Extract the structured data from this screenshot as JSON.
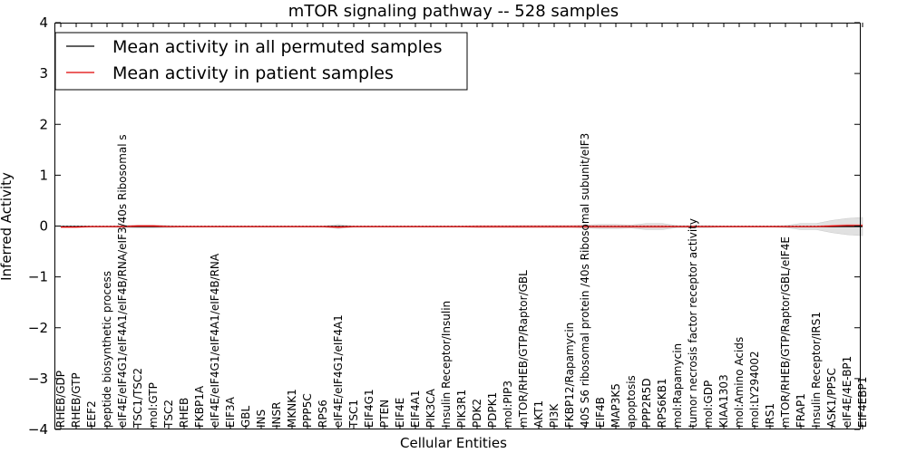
{
  "chart_data": {
    "type": "line",
    "title": "mTOR signaling pathway -- 528 samples",
    "xlabel": "Cellular Entities",
    "ylabel": "Inferred Activity",
    "ylim": [
      -4,
      4
    ],
    "yticks": [
      -4,
      -3,
      -2,
      -1,
      0,
      1,
      2,
      3,
      4
    ],
    "ytick_labels": [
      "−4",
      "−3",
      "−2",
      "−1",
      "0",
      "1",
      "2",
      "3",
      "4"
    ],
    "legend_position": "top-left",
    "categories": [
      "RHEB/GDP",
      "RHEB/GTP",
      "EEF2",
      "peptide biosynthetic process",
      "eIF4E/eIF4G1/eIF4A1/eIF4B/RNA/eIF3/40s Ribosomal s",
      "TSC1/TSC2",
      "mol:GTP",
      "TSC2",
      "RHEB",
      "FKBP1A",
      "eIF4E/eIF4G1/eIF4A1/eIF4B/RNA",
      "EIF3A",
      "GBL",
      "INS",
      "INSR",
      "MKNK1",
      "PPP5C",
      "RPS6",
      "eIF4E/eIF4G1/eIF4A1",
      "TSC1",
      "EIF4G1",
      "PTEN",
      "EIF4E",
      "EIF4A1",
      "PIK3CA",
      "Insulin Receptor/Insulin",
      "PIK3R1",
      "PDK2",
      "PDPK1",
      "mol:PIP3",
      "mTOR/RHEB/GTP/Raptor/GBL",
      "AKT1",
      "PI3K",
      "FKBP12/Rapamycin",
      "40S S6 ribosomal protein /40s Ribosomal subunit/eIF3",
      "EIF4B",
      "MAP3K5",
      "apoptosis",
      "PPP2R5D",
      "RPS6KB1",
      "mol:Rapamycin",
      "tumor necrosis factor receptor activity",
      "mol:GDP",
      "KIAA1303",
      "mol:Amino Acids",
      "mol:LY294002",
      "IRS1",
      "mTOR/RHEB/GTP/Raptor/GBL/eIF4E",
      "FRAP1",
      "Insulin Receptor/IRS1",
      "ASK1/PP5C",
      "eIF4E/4E-BP1",
      "EIF4EBP1"
    ],
    "series": [
      {
        "name": "Mean activity in all permuted samples",
        "color": "#000000",
        "values": [
          -0.01,
          -0.01,
          -0.01,
          -0.01,
          -0.01,
          -0.01,
          -0.01,
          -0.01,
          -0.01,
          -0.01,
          -0.01,
          -0.01,
          -0.01,
          -0.01,
          -0.01,
          -0.01,
          -0.01,
          -0.01,
          -0.01,
          -0.01,
          -0.01,
          -0.01,
          -0.01,
          -0.01,
          -0.01,
          -0.01,
          -0.01,
          -0.01,
          -0.01,
          -0.01,
          -0.01,
          -0.01,
          -0.01,
          -0.01,
          -0.01,
          -0.01,
          -0.01,
          -0.01,
          -0.01,
          -0.01,
          -0.01,
          -0.01,
          -0.01,
          -0.01,
          -0.01,
          -0.01,
          -0.01,
          -0.01,
          -0.01,
          -0.01,
          -0.01,
          -0.01,
          -0.01
        ],
        "band_halfwidth": [
          0.01,
          0.01,
          0.01,
          0.01,
          0.02,
          0.03,
          0.03,
          0.02,
          0.01,
          0.01,
          0.01,
          0.01,
          0.01,
          0.01,
          0.01,
          0.01,
          0.01,
          0.01,
          0.04,
          0.01,
          0.01,
          0.01,
          0.01,
          0.01,
          0.01,
          0.01,
          0.01,
          0.01,
          0.01,
          0.01,
          0.02,
          0.02,
          0.02,
          0.02,
          0.03,
          0.04,
          0.04,
          0.03,
          0.06,
          0.06,
          0.02,
          0.02,
          0.02,
          0.01,
          0.01,
          0.01,
          0.01,
          0.02,
          0.06,
          0.06,
          0.12,
          0.16,
          0.18
        ],
        "band_color": "#c8c8c8"
      },
      {
        "name": "Mean activity in patient samples",
        "color": "#e00000",
        "values": [
          -0.02,
          -0.02,
          -0.01,
          -0.01,
          -0.01,
          0.0,
          0.0,
          -0.01,
          -0.01,
          -0.01,
          -0.01,
          -0.01,
          -0.01,
          -0.01,
          -0.01,
          -0.01,
          -0.01,
          -0.01,
          -0.02,
          -0.01,
          -0.01,
          -0.01,
          -0.01,
          -0.01,
          -0.01,
          -0.01,
          -0.01,
          -0.01,
          -0.01,
          -0.01,
          -0.01,
          -0.01,
          -0.01,
          -0.01,
          -0.01,
          -0.01,
          -0.01,
          -0.01,
          -0.01,
          -0.01,
          -0.01,
          -0.01,
          -0.01,
          -0.01,
          -0.01,
          -0.01,
          -0.01,
          -0.01,
          -0.01,
          -0.01,
          0.0,
          0.01,
          0.01
        ],
        "band_halfwidth": [
          0.01,
          0.01,
          0.01,
          0.01,
          0.01,
          0.02,
          0.02,
          0.01,
          0.01,
          0.01,
          0.01,
          0.01,
          0.01,
          0.01,
          0.01,
          0.01,
          0.01,
          0.01,
          0.02,
          0.01,
          0.01,
          0.01,
          0.01,
          0.01,
          0.01,
          0.01,
          0.01,
          0.02,
          0.02,
          0.02,
          0.02,
          0.02,
          0.02,
          0.02,
          0.02,
          0.02,
          0.02,
          0.02,
          0.02,
          0.02,
          0.01,
          0.01,
          0.01,
          0.01,
          0.01,
          0.01,
          0.01,
          0.01,
          0.01,
          0.01,
          0.02,
          0.02,
          0.02
        ],
        "band_color": "#f2a0a0"
      }
    ]
  }
}
